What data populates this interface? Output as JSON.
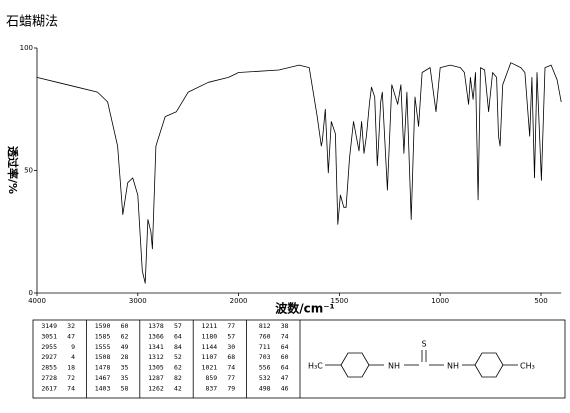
{
  "chart_data": {
    "type": "line",
    "title": "石蜡糊法",
    "x_label": "波数/cm⁻¹",
    "y_label": "透过率/%",
    "xlim": [
      4000,
      400
    ],
    "ylim": [
      0,
      100
    ],
    "xticks": [
      4000,
      3000,
      2000,
      1500,
      1000,
      500
    ],
    "yticks": [
      0,
      50,
      100
    ],
    "series": [
      {
        "color": "#000000",
        "x": [
          4000,
          3800,
          3600,
          3400,
          3300,
          3200,
          3149,
          3100,
          3051,
          3000,
          2955,
          2927,
          2900,
          2870,
          2855,
          2820,
          2728,
          2617,
          2500,
          2300,
          2100,
          2000,
          1800,
          1700,
          1650,
          1610,
          1590,
          1585,
          1570,
          1555,
          1540,
          1520,
          1508,
          1495,
          1478,
          1467,
          1450,
          1430,
          1403,
          1390,
          1378,
          1366,
          1350,
          1341,
          1325,
          1312,
          1305,
          1295,
          1287,
          1262,
          1240,
          1211,
          1195,
          1180,
          1165,
          1144,
          1125,
          1107,
          1090,
          1050,
          1021,
          1000,
          950,
          900,
          880,
          859,
          850,
          837,
          825,
          812,
          800,
          780,
          760,
          740,
          720,
          711,
          703,
          690,
          650,
          600,
          580,
          556,
          545,
          532,
          520,
          498,
          480,
          450,
          420,
          400
        ],
        "values": [
          88,
          86,
          84,
          82,
          78,
          60,
          32,
          45,
          47,
          40,
          9,
          4,
          30,
          25,
          18,
          60,
          72,
          74,
          82,
          86,
          88,
          90,
          91,
          93,
          92,
          72,
          60,
          62,
          75,
          49,
          70,
          65,
          28,
          40,
          35,
          35,
          55,
          70,
          58,
          70,
          57,
          64,
          78,
          84,
          80,
          52,
          62,
          78,
          82,
          42,
          85,
          77,
          85,
          57,
          82,
          30,
          80,
          68,
          90,
          92,
          74,
          92,
          93,
          92,
          90,
          77,
          88,
          79,
          90,
          38,
          92,
          91,
          74,
          90,
          88,
          64,
          60,
          85,
          94,
          92,
          90,
          64,
          88,
          47,
          90,
          46,
          92,
          93,
          87,
          78
        ]
      }
    ]
  },
  "peak_table": {
    "columns": [
      [
        [
          3149,
          32
        ],
        [
          3051,
          47
        ],
        [
          2955,
          9
        ],
        [
          2927,
          4
        ],
        [
          2855,
          18
        ],
        [
          2728,
          72
        ],
        [
          2617,
          74
        ]
      ],
      [
        [
          1590,
          60
        ],
        [
          1585,
          62
        ],
        [
          1555,
          49
        ],
        [
          1508,
          28
        ],
        [
          1478,
          35
        ],
        [
          1467,
          35
        ],
        [
          1403,
          58
        ]
      ],
      [
        [
          1378,
          57
        ],
        [
          1366,
          64
        ],
        [
          1341,
          84
        ],
        [
          1312,
          52
        ],
        [
          1305,
          62
        ],
        [
          1287,
          82
        ],
        [
          1262,
          42
        ]
      ],
      [
        [
          1211,
          77
        ],
        [
          1180,
          57
        ],
        [
          1144,
          30
        ],
        [
          1107,
          68
        ],
        [
          1021,
          74
        ],
        [
          859,
          77
        ],
        [
          837,
          79
        ]
      ],
      [
        [
          812,
          38
        ],
        [
          760,
          74
        ],
        [
          711,
          64
        ],
        [
          703,
          60
        ],
        [
          556,
          64
        ],
        [
          532,
          47
        ],
        [
          498,
          46
        ]
      ]
    ]
  },
  "structure": {
    "labels": [
      "H₃C",
      "NH",
      "S",
      "NH",
      "CH₃"
    ]
  }
}
